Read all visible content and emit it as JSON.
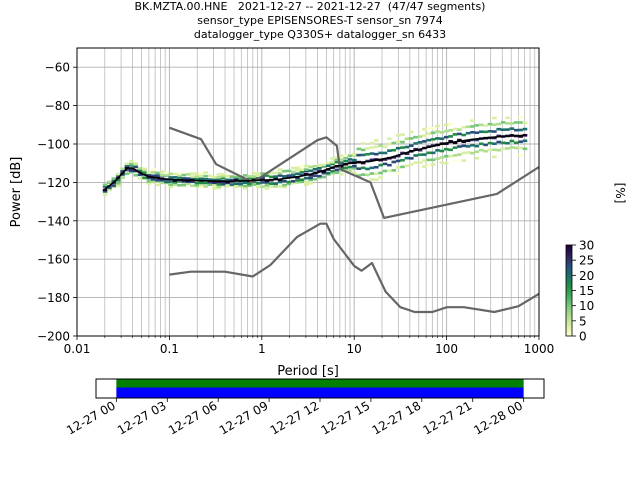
{
  "title": {
    "line1": "BK.MZTA.00.HNE   2021-12-27 -- 2021-12-27  (47/47 segments)",
    "line2": "sensor_type EPISENSORES-T sensor_sn 7974",
    "line3": "datalogger_type Q330S+ datalogger_sn 6433"
  },
  "chart_data": [
    {
      "type": "line",
      "xlabel": "Period [s]",
      "ylabel": "Power [dB]",
      "xscale": "log",
      "xlim": [
        0.01,
        1000
      ],
      "ylim": [
        -200,
        -50
      ],
      "grid": true,
      "x_ticks": [
        {
          "value": 0.01,
          "label": "0.01"
        },
        {
          "value": 0.1,
          "label": "0.1"
        },
        {
          "value": 1,
          "label": "1"
        },
        {
          "value": 10,
          "label": "10"
        },
        {
          "value": 100,
          "label": "100"
        },
        {
          "value": 1000,
          "label": "1000"
        }
      ],
      "y_ticks": [
        {
          "value": -60,
          "label": "−60"
        },
        {
          "value": -80,
          "label": "−80"
        },
        {
          "value": -100,
          "label": "−100"
        },
        {
          "value": -120,
          "label": "−120"
        },
        {
          "value": -140,
          "label": "−140"
        },
        {
          "value": -160,
          "label": "−160"
        },
        {
          "value": -180,
          "label": "−180"
        },
        {
          "value": -200,
          "label": "−200"
        }
      ],
      "noise_models": {
        "color": "#666666",
        "high": [
          [
            0.1,
            -91.5
          ],
          [
            0.22,
            -97.5
          ],
          [
            0.32,
            -110.5
          ],
          [
            0.8,
            -120
          ],
          [
            4,
            -98
          ],
          [
            5,
            -96.5
          ],
          [
            6.5,
            -101
          ],
          [
            7,
            -113
          ],
          [
            15,
            -120
          ],
          [
            21,
            -138.5
          ],
          [
            350,
            -126
          ],
          [
            1000,
            -112
          ]
        ],
        "low": [
          [
            0.1,
            -168
          ],
          [
            0.17,
            -166.5
          ],
          [
            0.4,
            -166.5
          ],
          [
            0.8,
            -169
          ],
          [
            1.24,
            -163
          ],
          [
            2.4,
            -148.5
          ],
          [
            4.3,
            -141.5
          ],
          [
            5,
            -141.5
          ],
          [
            6,
            -149.5
          ],
          [
            10,
            -163.5
          ],
          [
            12,
            -166
          ],
          [
            15.6,
            -162
          ],
          [
            21.9,
            -177
          ],
          [
            31.6,
            -185
          ],
          [
            45,
            -187.5
          ],
          [
            70,
            -187.5
          ],
          [
            101,
            -185
          ],
          [
            154,
            -185
          ],
          [
            328,
            -187.5
          ],
          [
            600,
            -184.5
          ],
          [
            1000,
            -178
          ]
        ]
      },
      "mode": {
        "color": "#000000",
        "points": [
          [
            0.02,
            -123.5
          ],
          [
            0.025,
            -120
          ],
          [
            0.03,
            -116
          ],
          [
            0.035,
            -112.5
          ],
          [
            0.04,
            -112.5
          ],
          [
            0.05,
            -115.5
          ],
          [
            0.06,
            -117
          ],
          [
            0.08,
            -118
          ],
          [
            0.1,
            -118.5
          ],
          [
            0.2,
            -119
          ],
          [
            0.4,
            -119.5
          ],
          [
            0.8,
            -119
          ],
          [
            1.5,
            -118.5
          ],
          [
            2.5,
            -117
          ],
          [
            4,
            -115
          ],
          [
            6,
            -112
          ],
          [
            9,
            -110
          ],
          [
            15,
            -109
          ],
          [
            25,
            -107
          ],
          [
            40,
            -104
          ],
          [
            60,
            -102
          ],
          [
            100,
            -99.5
          ],
          [
            200,
            -97.5
          ],
          [
            400,
            -96
          ],
          [
            700,
            -95.5
          ]
        ]
      },
      "colorbar": {
        "label": "[%]",
        "ticks": [
          "0",
          "5",
          "10",
          "15",
          "20",
          "25",
          "30"
        ],
        "vmin": 0,
        "vmax": 30,
        "colors": [
          "#ffffcc",
          "#d9f0a3",
          "#addd8e",
          "#78c679",
          "#41ab5d",
          "#238b45",
          "#1d6e6e",
          "#2c4a7c",
          "#2e1e5a",
          "#1a0030"
        ]
      }
    },
    {
      "type": "bar",
      "description": "data coverage timeline",
      "x_ticks": [
        "12-27 00",
        "12-27 03",
        "12-27 06",
        "12-27 09",
        "12-27 12",
        "12-27 15",
        "12-27 18",
        "12-27 21",
        "12-28 00"
      ],
      "coverage": {
        "start_hour": 0,
        "end_hour": 24,
        "range_start_hour": -1.2,
        "range_end_hour": 25.2
      },
      "series": [
        {
          "color": "#008000"
        },
        {
          "color": "#0000ff"
        }
      ]
    }
  ]
}
